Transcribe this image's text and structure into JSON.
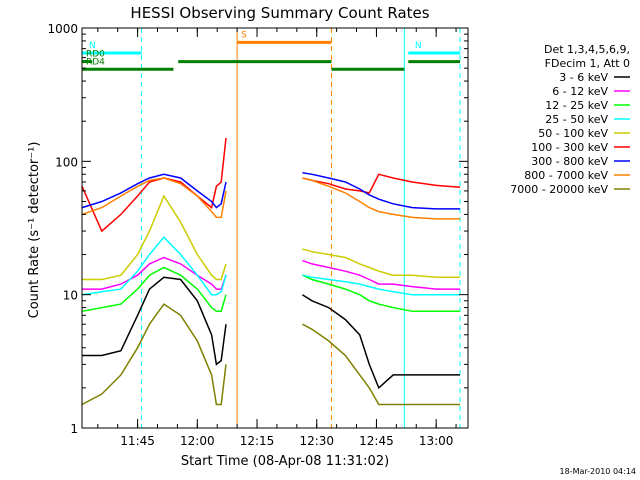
{
  "chart_data": {
    "type": "line",
    "title": "HESSI Observing Summary Count Rates",
    "xlabel": "Start Time (08-Apr-08 11:31:02)",
    "ylabel": "Count Rate (s⁻¹ detector⁻¹)",
    "y_scale": "log",
    "ylim": [
      1,
      1000
    ],
    "xlim": [
      11.5172,
      13.1333
    ],
    "x_tick_labels": [
      "11:45",
      "12:00",
      "12:15",
      "12:30",
      "12:45",
      "13:00"
    ],
    "y_tick_labels": [
      "1",
      "10",
      "100",
      "1000"
    ],
    "legend": {
      "placement": "right",
      "header": [
        "Det 1,3,4,5,6,9,",
        "FDecim 1, Att 0"
      ]
    },
    "series": [
      {
        "name": "3 - 6 keV",
        "color": "#000000",
        "x": [
          11.5172,
          11.6,
          11.68,
          11.75,
          11.8,
          11.86,
          11.93,
          12.0,
          12.06,
          12.08,
          12.1,
          12.12
        ],
        "values": [
          3.5,
          3.5,
          3.8,
          7.0,
          11.0,
          13.5,
          13.0,
          9.0,
          5.0,
          3.0,
          3.2,
          6.0
        ],
        "x2": [
          12.44,
          12.48,
          12.55,
          12.62,
          12.68,
          12.72,
          12.76,
          12.82,
          12.9,
          13.0,
          13.1
        ],
        "values2": [
          10.0,
          9.0,
          8.0,
          6.5,
          5.0,
          3.0,
          2.0,
          2.5,
          2.5,
          2.5,
          2.5
        ]
      },
      {
        "name": "6 - 12 keV",
        "color": "#ff00ff",
        "x": [
          11.5172,
          11.6,
          11.68,
          11.75,
          11.8,
          11.86,
          11.93,
          12.0,
          12.06,
          12.08,
          12.1,
          12.12
        ],
        "values": [
          11.0,
          11.0,
          12.0,
          14.0,
          17.0,
          19.0,
          17.0,
          14.0,
          12.0,
          11.0,
          11.0,
          14.0
        ],
        "x2": [
          12.44,
          12.48,
          12.55,
          12.62,
          12.68,
          12.72,
          12.76,
          12.82,
          12.9,
          13.0,
          13.1
        ],
        "values2": [
          18.0,
          17.0,
          16.0,
          15.0,
          14.0,
          13.0,
          12.0,
          12.0,
          11.5,
          11.0,
          11.0
        ]
      },
      {
        "name": "12 - 25 keV",
        "color": "#00ff00",
        "x": [
          11.5172,
          11.6,
          11.68,
          11.75,
          11.8,
          11.86,
          11.93,
          12.0,
          12.06,
          12.08,
          12.1,
          12.12
        ],
        "values": [
          7.5,
          8.0,
          8.5,
          11.0,
          14.0,
          16.0,
          14.0,
          11.0,
          8.0,
          7.5,
          7.5,
          10.0
        ],
        "x2": [
          12.44,
          12.48,
          12.55,
          12.62,
          12.68,
          12.72,
          12.76,
          12.82,
          12.9,
          13.0,
          13.1
        ],
        "values2": [
          14.0,
          13.0,
          12.0,
          11.0,
          10.0,
          9.0,
          8.5,
          8.0,
          7.5,
          7.5,
          7.5
        ]
      },
      {
        "name": "25 - 50 keV",
        "color": "#00ffff",
        "x": [
          11.5172,
          11.6,
          11.68,
          11.75,
          11.8,
          11.86,
          11.93,
          12.0,
          12.06,
          12.08,
          12.1,
          12.12
        ],
        "values": [
          10.0,
          10.5,
          11.0,
          15.0,
          20.0,
          27.0,
          20.0,
          14.0,
          10.0,
          10.0,
          10.5,
          14.0
        ],
        "x2": [
          12.44,
          12.48,
          12.55,
          12.62,
          12.68,
          12.72,
          12.76,
          12.82,
          12.9,
          13.0,
          13.1
        ],
        "values2": [
          14.0,
          13.5,
          13.0,
          12.5,
          12.0,
          11.5,
          11.0,
          10.5,
          10.0,
          10.0,
          10.0
        ]
      },
      {
        "name": "50 - 100 keV",
        "color": "#cccc00",
        "x": [
          11.5172,
          11.6,
          11.68,
          11.75,
          11.8,
          11.86,
          11.93,
          12.0,
          12.06,
          12.08,
          12.1,
          12.12
        ],
        "values": [
          13.0,
          13.0,
          14.0,
          20.0,
          30.0,
          55.0,
          35.0,
          20.0,
          14.0,
          13.0,
          13.0,
          17.0
        ],
        "x2": [
          12.44,
          12.48,
          12.55,
          12.62,
          12.68,
          12.72,
          12.76,
          12.82,
          12.9,
          13.0,
          13.1
        ],
        "values2": [
          22.0,
          21.0,
          20.0,
          19.0,
          17.0,
          16.0,
          15.0,
          14.0,
          14.0,
          13.5,
          13.5
        ]
      },
      {
        "name": "100 - 300 keV",
        "color": "#ff0000",
        "x": [
          11.5172,
          11.6,
          11.68,
          11.75,
          11.8,
          11.86,
          11.93,
          12.0,
          12.06,
          12.08,
          12.1,
          12.12
        ],
        "values": [
          65.0,
          30.0,
          40.0,
          55.0,
          70.0,
          75.0,
          70.0,
          55.0,
          45.0,
          65.0,
          70.0,
          150.0
        ],
        "x2": [
          12.44,
          12.48,
          12.55,
          12.62,
          12.68,
          12.72,
          12.76,
          12.82,
          12.9,
          13.0,
          13.1
        ],
        "values2": [
          75.0,
          72.0,
          68.0,
          62.0,
          60.0,
          58.0,
          80.0,
          75.0,
          70.0,
          66.0,
          64.0
        ]
      },
      {
        "name": "300 - 800 keV",
        "color": "#0000ff",
        "x": [
          11.5172,
          11.6,
          11.68,
          11.75,
          11.8,
          11.86,
          11.93,
          12.0,
          12.06,
          12.08,
          12.1,
          12.12
        ],
        "values": [
          45.0,
          50.0,
          58.0,
          68.0,
          75.0,
          80.0,
          75.0,
          60.0,
          50.0,
          45.0,
          48.0,
          70.0
        ],
        "x2": [
          12.44,
          12.48,
          12.55,
          12.62,
          12.68,
          12.72,
          12.76,
          12.82,
          12.9,
          13.0,
          13.1
        ],
        "values2": [
          82.0,
          80.0,
          75.0,
          70.0,
          62.0,
          56.0,
          52.0,
          48.0,
          45.0,
          44.0,
          44.0
        ]
      },
      {
        "name": "800 - 7000 keV",
        "color": "#ff8000",
        "x": [
          11.5172,
          11.6,
          11.68,
          11.75,
          11.8,
          11.86,
          11.93,
          12.0,
          12.06,
          12.08,
          12.1,
          12.12
        ],
        "values": [
          40.0,
          45.0,
          55.0,
          65.0,
          72.0,
          75.0,
          68.0,
          55.0,
          42.0,
          38.0,
          38.0,
          60.0
        ],
        "x2": [
          12.44,
          12.48,
          12.55,
          12.62,
          12.68,
          12.72,
          12.76,
          12.82,
          12.9,
          13.0,
          13.1
        ],
        "values2": [
          75.0,
          72.0,
          65.0,
          58.0,
          50.0,
          45.0,
          42.0,
          40.0,
          38.0,
          37.0,
          37.0
        ]
      },
      {
        "name": "7000 - 20000 keV",
        "color": "#808000",
        "x": [
          11.5172,
          11.6,
          11.68,
          11.75,
          11.8,
          11.86,
          11.93,
          12.0,
          12.06,
          12.08,
          12.1,
          12.12
        ],
        "values": [
          1.5,
          1.8,
          2.5,
          4.0,
          6.0,
          8.5,
          7.0,
          4.5,
          2.5,
          1.5,
          1.5,
          3.0
        ],
        "x2": [
          12.44,
          12.48,
          12.55,
          12.62,
          12.68,
          12.72,
          12.76,
          12.82,
          12.9,
          13.0,
          13.1
        ],
        "values2": [
          6.0,
          5.5,
          4.5,
          3.5,
          2.5,
          2.0,
          1.5,
          1.5,
          1.5,
          1.5,
          1.5
        ]
      }
    ],
    "annotations": [
      {
        "label": "N",
        "color": "#00ffff",
        "x": [
          11.5172,
          11.7667
        ],
        "value": 650
      },
      {
        "label": "N",
        "color": "#00ffff",
        "x": [
          12.8833,
          13.1
        ],
        "value": 650
      },
      {
        "label": "RD0",
        "color": "#008000",
        "x": [
          11.5172,
          11.56
        ],
        "value": 560
      },
      {
        "label": "RD4",
        "color": "#008000",
        "x": [
          11.5172,
          11.9
        ],
        "value": 490
      },
      {
        "label": "",
        "color": "#008000",
        "x": [
          11.92,
          12.5617
        ],
        "value": 560
      },
      {
        "label": "",
        "color": "#008000",
        "x": [
          12.5617,
          12.8667
        ],
        "value": 490
      },
      {
        "label": "",
        "color": "#008000",
        "x": [
          12.8833,
          13.1
        ],
        "value": 560
      },
      {
        "label": "S",
        "color": "#ff8000",
        "x": [
          12.1667,
          12.5617
        ],
        "value": 780
      }
    ],
    "vertical_markers": [
      {
        "x": 11.7667,
        "color": "#00ffff",
        "style": "dashed"
      },
      {
        "x": 12.1667,
        "color": "#ff8000",
        "style": "solid"
      },
      {
        "x": 12.5617,
        "color": "#ff8000",
        "style": "dashed"
      },
      {
        "x": 12.8667,
        "color": "#00ffff",
        "style": "solid"
      },
      {
        "x": 13.1,
        "color": "#00ffff",
        "style": "dashed"
      }
    ],
    "timestamp": "18-Mar-2010 04:14"
  }
}
